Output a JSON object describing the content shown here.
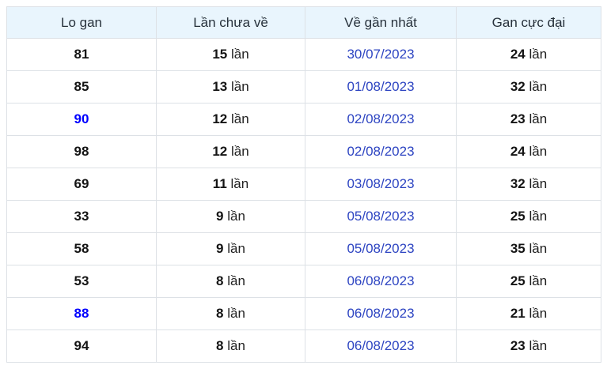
{
  "table": {
    "headers": [
      "Lo gan",
      "Lần chưa về",
      "Về gần nhất",
      "Gan cực đại"
    ],
    "unit_suffix": "lần",
    "rows": [
      {
        "lo": "81",
        "highlight": false,
        "times": "15",
        "date": "30/07/2023",
        "max": "24"
      },
      {
        "lo": "85",
        "highlight": false,
        "times": "13",
        "date": "01/08/2023",
        "max": "32"
      },
      {
        "lo": "90",
        "highlight": true,
        "times": "12",
        "date": "02/08/2023",
        "max": "23"
      },
      {
        "lo": "98",
        "highlight": false,
        "times": "12",
        "date": "02/08/2023",
        "max": "24"
      },
      {
        "lo": "69",
        "highlight": false,
        "times": "11",
        "date": "03/08/2023",
        "max": "32"
      },
      {
        "lo": "33",
        "highlight": false,
        "times": "9",
        "date": "05/08/2023",
        "max": "25"
      },
      {
        "lo": "58",
        "highlight": false,
        "times": "9",
        "date": "05/08/2023",
        "max": "35"
      },
      {
        "lo": "53",
        "highlight": false,
        "times": "8",
        "date": "06/08/2023",
        "max": "25"
      },
      {
        "lo": "88",
        "highlight": true,
        "times": "8",
        "date": "06/08/2023",
        "max": "21"
      },
      {
        "lo": "94",
        "highlight": false,
        "times": "8",
        "date": "06/08/2023",
        "max": "23"
      }
    ],
    "colors": {
      "header_bg": "#e9f5fd",
      "border": "#dde1e6",
      "date_link": "#2e45c2",
      "highlight_number": "#0000ff",
      "text": "#222222"
    }
  }
}
